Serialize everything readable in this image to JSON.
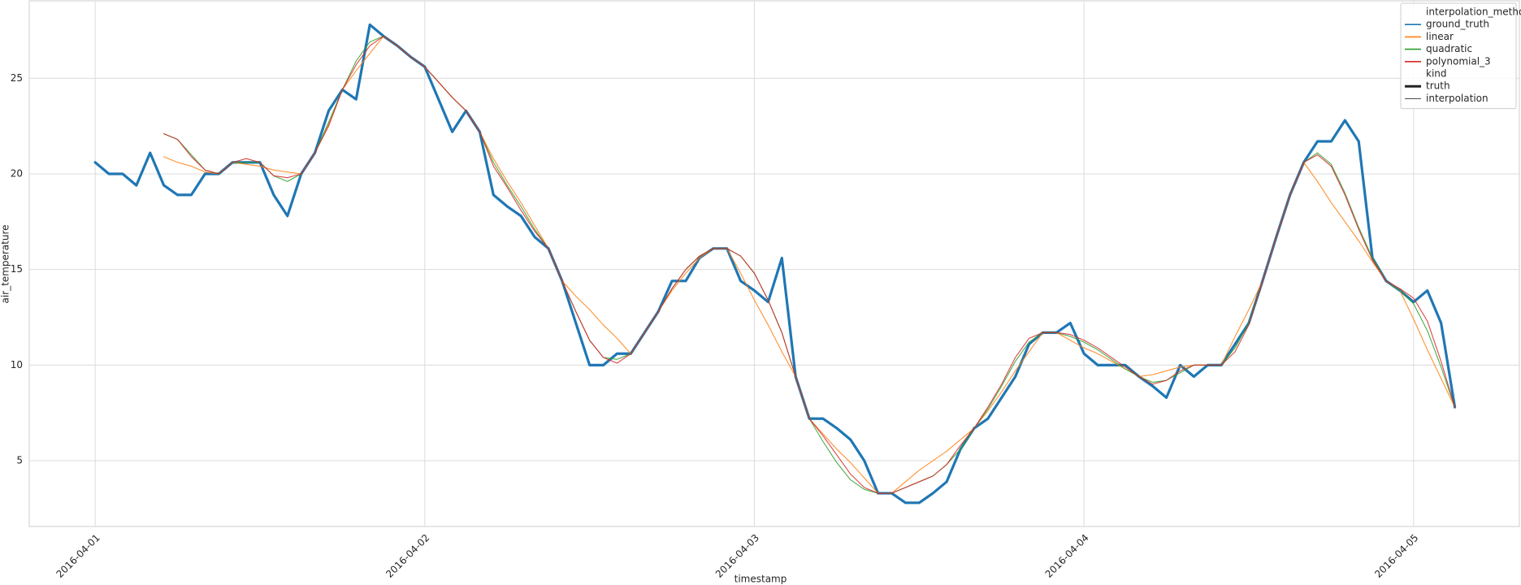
{
  "chart_data": {
    "type": "line",
    "x_label": "timestamp",
    "y_label": "air_temperature",
    "x": [
      0,
      1,
      2,
      3,
      4,
      5,
      6,
      7,
      8,
      9,
      10,
      11,
      12,
      13,
      14,
      15,
      16,
      17,
      18,
      19,
      20,
      21,
      22,
      23,
      24,
      25,
      26,
      27,
      28,
      29,
      30,
      31,
      32,
      33,
      34,
      35,
      36,
      37,
      38,
      39,
      40,
      41,
      42,
      43,
      44,
      45,
      46,
      47,
      48,
      49,
      50,
      51,
      52,
      53,
      54,
      55,
      56,
      57,
      58,
      59,
      60,
      61,
      62,
      63,
      64,
      65,
      66,
      67,
      68,
      69,
      70,
      71,
      72,
      73,
      74,
      75,
      76,
      77,
      78,
      79,
      80,
      81,
      82,
      83,
      84,
      85,
      86,
      87,
      88,
      89,
      90,
      91,
      92,
      93,
      94,
      95,
      96,
      97,
      98,
      99
    ],
    "xlim": [
      -4.8,
      103.7
    ],
    "xticks": [
      {
        "value": 0,
        "label": "2016-04-01"
      },
      {
        "value": 24,
        "label": "2016-04-02"
      },
      {
        "value": 48,
        "label": "2016-04-03"
      },
      {
        "value": 72,
        "label": "2016-04-04"
      },
      {
        "value": 96,
        "label": "2016-04-05"
      }
    ],
    "ylim": [
      1.56,
      29.05
    ],
    "yticks": [
      5,
      10,
      15,
      20,
      25
    ],
    "grid": true,
    "legend": {
      "title": "interpolation_method",
      "style_title": "kind",
      "corner": "upper right"
    },
    "kinds": [
      "truth",
      "interpolation"
    ],
    "series": [
      {
        "name": "ground_truth",
        "color": "#1f77b4",
        "kind": "truth",
        "values": [
          20.6,
          20.0,
          20.0,
          19.4,
          21.1,
          19.4,
          18.9,
          18.9,
          20.0,
          20.0,
          20.6,
          20.6,
          20.6,
          18.9,
          17.8,
          20.0,
          21.1,
          23.3,
          24.4,
          23.9,
          27.8,
          27.2,
          26.7,
          26.1,
          25.6,
          23.9,
          22.2,
          23.3,
          22.2,
          18.9,
          18.3,
          17.8,
          16.7,
          16.1,
          14.4,
          12.2,
          10.0,
          10.0,
          10.6,
          10.6,
          11.7,
          12.8,
          14.4,
          14.4,
          15.6,
          16.1,
          16.1,
          14.4,
          13.9,
          13.3,
          15.6,
          9.4,
          7.2,
          7.2,
          6.7,
          6.1,
          5.0,
          3.3,
          3.3,
          2.8,
          2.8,
          3.3,
          3.9,
          5.6,
          6.7,
          7.2,
          8.3,
          9.4,
          11.1,
          11.7,
          11.7,
          12.2,
          10.6,
          10.0,
          10.0,
          10.0,
          9.4,
          8.9,
          8.3,
          10.0,
          9.4,
          10.0,
          10.0,
          11.1,
          12.2,
          14.4,
          16.7,
          18.9,
          20.6,
          21.7,
          21.7,
          22.8,
          21.7,
          15.6,
          14.4,
          13.9,
          13.3,
          13.9,
          12.2,
          7.8
        ]
      },
      {
        "name": "linear",
        "color": "#ff7f0e",
        "kind": "interpolation",
        "values": [
          null,
          null,
          null,
          null,
          null,
          20.9,
          20.6,
          20.4,
          20.1,
          20.0,
          20.6,
          20.5,
          20.4,
          20.2,
          20.1,
          20.0,
          21.1,
          22.6,
          24.4,
          25.4,
          26.3,
          27.2,
          26.7,
          26.1,
          25.6,
          24.8,
          24.0,
          23.3,
          22.2,
          20.8,
          19.6,
          18.5,
          17.3,
          16.1,
          14.4,
          13.6,
          12.9,
          12.1,
          11.4,
          10.6,
          11.7,
          12.8,
          13.9,
          14.8,
          15.6,
          16.1,
          16.1,
          14.8,
          13.4,
          12.1,
          10.7,
          9.4,
          7.2,
          6.4,
          5.6,
          4.9,
          4.1,
          3.3,
          3.3,
          3.9,
          4.5,
          5.0,
          5.5,
          6.1,
          6.7,
          7.6,
          8.6,
          9.7,
          10.7,
          11.7,
          11.7,
          11.3,
          10.9,
          10.6,
          10.2,
          9.8,
          9.4,
          9.5,
          9.7,
          9.9,
          10.0,
          10.0,
          10.0,
          11.5,
          12.9,
          14.4,
          16.7,
          18.9,
          20.6,
          19.6,
          18.5,
          17.5,
          16.5,
          15.4,
          14.4,
          13.9,
          12.4,
          10.8,
          9.3,
          7.8
        ]
      },
      {
        "name": "quadratic",
        "color": "#2ca02c",
        "kind": "interpolation",
        "values": [
          null,
          null,
          null,
          null,
          null,
          22.1,
          21.8,
          21.0,
          20.2,
          20.0,
          20.6,
          20.6,
          20.6,
          19.9,
          19.6,
          20.0,
          21.1,
          22.7,
          24.4,
          25.9,
          26.9,
          27.2,
          26.7,
          26.1,
          25.6,
          24.8,
          24.0,
          23.3,
          22.2,
          20.6,
          19.4,
          18.3,
          17.1,
          16.1,
          14.4,
          12.8,
          11.3,
          10.4,
          10.3,
          10.6,
          11.7,
          12.8,
          14.0,
          15.0,
          15.7,
          16.1,
          16.1,
          15.7,
          14.8,
          13.4,
          11.7,
          9.4,
          7.2,
          6.0,
          4.9,
          4.0,
          3.5,
          3.3,
          3.3,
          3.6,
          3.9,
          4.2,
          4.8,
          5.6,
          6.7,
          7.7,
          8.9,
          10.2,
          11.2,
          11.7,
          11.7,
          11.5,
          11.2,
          10.8,
          10.3,
          9.8,
          9.4,
          9.1,
          9.2,
          9.6,
          10.0,
          10.0,
          10.0,
          10.9,
          12.2,
          14.4,
          16.7,
          18.9,
          20.6,
          21.1,
          20.5,
          19.0,
          17.2,
          15.6,
          14.4,
          13.9,
          13.2,
          11.8,
          9.9,
          7.8
        ]
      },
      {
        "name": "polynomial_3",
        "color": "#d62728",
        "kind": "interpolation",
        "values": [
          null,
          null,
          null,
          null,
          null,
          22.1,
          21.8,
          20.9,
          20.2,
          20.0,
          20.6,
          20.8,
          20.6,
          19.9,
          19.8,
          20.0,
          21.1,
          22.5,
          24.4,
          25.7,
          26.7,
          27.2,
          26.7,
          26.1,
          25.6,
          24.8,
          24.0,
          23.3,
          22.2,
          20.4,
          19.3,
          18.1,
          17.0,
          16.1,
          14.4,
          12.8,
          11.3,
          10.4,
          10.1,
          10.6,
          11.7,
          12.8,
          14.0,
          15.0,
          15.7,
          16.1,
          16.1,
          15.7,
          14.8,
          13.4,
          11.7,
          9.4,
          7.2,
          6.3,
          5.3,
          4.3,
          3.6,
          3.3,
          3.3,
          3.6,
          3.9,
          4.2,
          4.8,
          5.8,
          6.7,
          7.8,
          9.0,
          10.4,
          11.4,
          11.7,
          11.7,
          11.6,
          11.3,
          10.9,
          10.4,
          9.9,
          9.4,
          9.0,
          9.2,
          9.7,
          10.0,
          10.0,
          10.0,
          10.7,
          12.1,
          14.4,
          16.7,
          18.9,
          20.6,
          21.0,
          20.4,
          18.9,
          17.1,
          15.5,
          14.4,
          14.0,
          13.5,
          12.3,
          10.2,
          7.8
        ]
      }
    ]
  }
}
